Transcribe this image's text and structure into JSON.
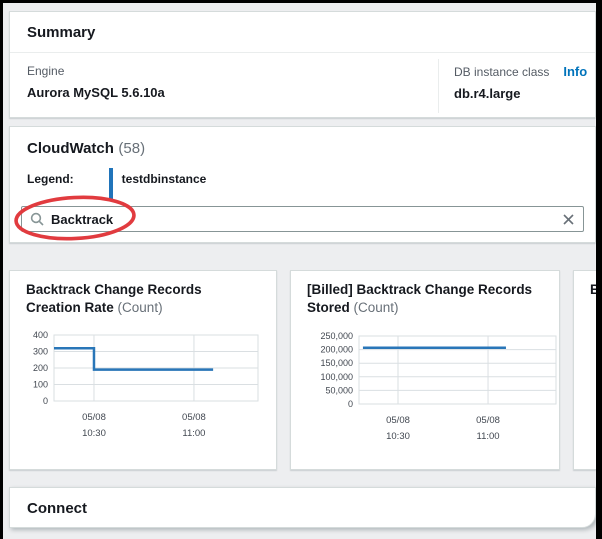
{
  "summary": {
    "title": "Summary",
    "engine_label": "Engine",
    "engine_value": "Aurora MySQL 5.6.10a",
    "class_label": "DB instance class",
    "class_info_link": "Info",
    "class_value": "db.r4.large"
  },
  "cloudwatch": {
    "title": "CloudWatch",
    "count": "(58)",
    "legend_label": "Legend:",
    "legend_name": "testdbinstance",
    "legend_color": "#2074ba",
    "search_value": "Backtrack"
  },
  "connect": {
    "title": "Connect"
  },
  "annotation": {
    "shape": "red-ellipse-around-search-term",
    "color": "#e13b3f"
  },
  "colors": {
    "link_blue": "#0073bb",
    "chart_line": "#2976b8",
    "grid": "#dadfe2",
    "tick_text": "#414750"
  },
  "chart_data": [
    {
      "type": "line",
      "title": "Backtrack Change Records Creation Rate",
      "unit": "(Count)",
      "ylim": [
        0,
        400
      ],
      "yticks": [
        0,
        100,
        200,
        300,
        400
      ],
      "ytick_labels": [
        "0",
        "100",
        "200",
        "300",
        "400"
      ],
      "xticks": [
        {
          "top": "05/08",
          "bottom": "10:30",
          "frac": 0.196
        },
        {
          "top": "05/08",
          "bottom": "11:00",
          "frac": 0.686
        }
      ],
      "grid": true,
      "series": [
        {
          "name": "testdbinstance",
          "color": "#2976b8",
          "points": [
            [
              0.0,
              320
            ],
            [
              0.196,
              320
            ],
            [
              0.196,
              190
            ],
            [
              0.78,
              190
            ]
          ]
        }
      ]
    },
    {
      "type": "line",
      "title": "[Billed] Backtrack Change Records Stored",
      "unit": "(Count)",
      "ylim": [
        0,
        250000
      ],
      "yticks": [
        0,
        50000,
        100000,
        150000,
        200000,
        250000
      ],
      "ytick_labels": [
        "0",
        "50,000",
        "100,000",
        "150,000",
        "200,000",
        "250,000"
      ],
      "xticks": [
        {
          "top": "05/08",
          "bottom": "10:30",
          "frac": 0.198
        },
        {
          "top": "05/08",
          "bottom": "11:00",
          "frac": 0.655
        }
      ],
      "grid": true,
      "series": [
        {
          "name": "testdbinstance",
          "color": "#2976b8",
          "points": [
            [
              0.02,
              207000
            ],
            [
              0.746,
              207000
            ]
          ]
        }
      ]
    },
    {
      "type": "line",
      "title": "B",
      "unit": ""
    }
  ]
}
